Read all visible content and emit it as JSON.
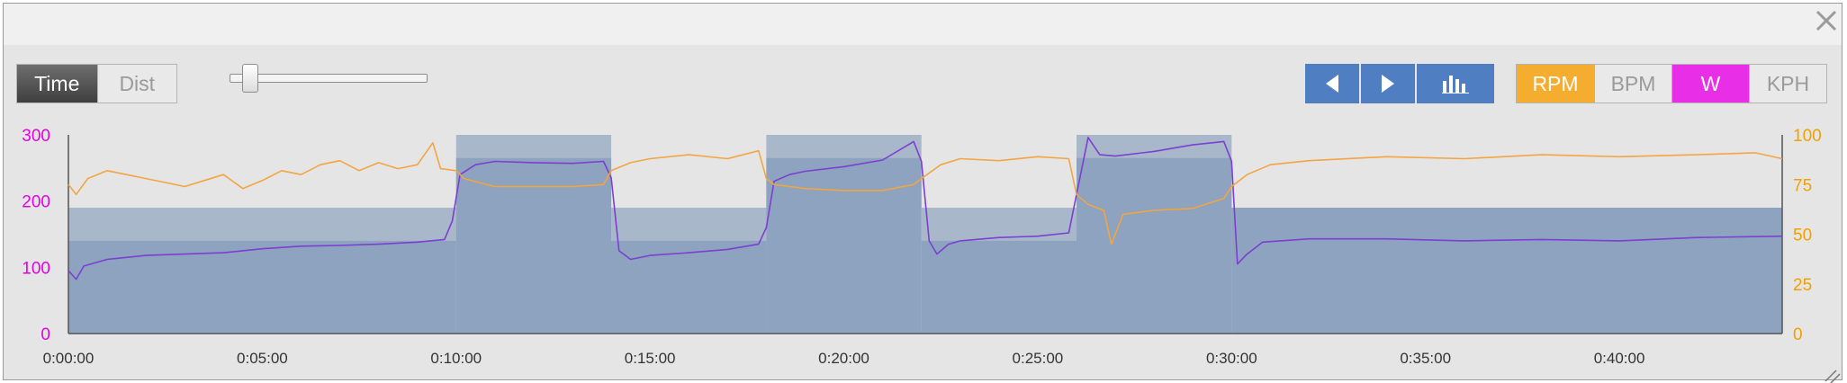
{
  "toolbar": {
    "mode_buttons": [
      {
        "label": "Time",
        "active": true
      },
      {
        "label": "Dist",
        "active": false
      }
    ],
    "zoom_slider_value": 0.1,
    "nav_icons": [
      "previous-icon",
      "next-icon",
      "bar-chart-icon"
    ],
    "metric_buttons": [
      {
        "label": "RPM",
        "active": true,
        "color": "#f4ad2e"
      },
      {
        "label": "BPM",
        "active": false
      },
      {
        "label": "W",
        "active": true,
        "color": "#e92ee7"
      },
      {
        "label": "KPH",
        "active": false
      }
    ]
  },
  "colors": {
    "power_axis": "#e600e6",
    "cadence_axis": "#f2a000",
    "cadence_line": "#f2a541",
    "power_line": "#7b3fd2",
    "target_area": "#8ea3bf",
    "target_band": "#a9b7cb",
    "background": "#e6e5e6"
  },
  "chart_data": {
    "type": "line",
    "x_unit": "minutes",
    "xlim": [
      0,
      44.2
    ],
    "x_ticks": [
      "0:00:00",
      "0:05:00",
      "0:10:00",
      "0:15:00",
      "0:20:00",
      "0:25:00",
      "0:30:00",
      "0:35:00",
      "0:40:00"
    ],
    "y_left": {
      "label": "W",
      "ylim": [
        0,
        300
      ],
      "ticks": [
        "300",
        "200",
        "100",
        "0"
      ]
    },
    "y_right": {
      "label": "RPM",
      "ylim": [
        0,
        100
      ],
      "ticks": [
        "100",
        "75",
        "50",
        "25",
        "0"
      ]
    },
    "target_blocks": [
      {
        "start": 0,
        "end": 10,
        "low": 140,
        "high": 190
      },
      {
        "start": 10,
        "end": 14,
        "low": 265,
        "high": 300
      },
      {
        "start": 14,
        "end": 18,
        "low": 140,
        "high": 190
      },
      {
        "start": 18,
        "end": 22,
        "low": 265,
        "high": 300
      },
      {
        "start": 22,
        "end": 26,
        "low": 140,
        "high": 190
      },
      {
        "start": 26,
        "end": 30,
        "low": 265,
        "high": 300
      },
      {
        "start": 30,
        "end": 44.2,
        "low": 190,
        "high": 190
      }
    ],
    "series": [
      {
        "name": "W",
        "axis": "left",
        "values": [
          [
            0,
            95
          ],
          [
            0.2,
            82
          ],
          [
            0.4,
            102
          ],
          [
            1,
            112
          ],
          [
            2,
            118
          ],
          [
            3,
            120
          ],
          [
            4,
            122
          ],
          [
            5,
            128
          ],
          [
            6,
            132
          ],
          [
            7,
            133
          ],
          [
            8,
            135
          ],
          [
            9,
            138
          ],
          [
            9.7,
            142
          ],
          [
            9.9,
            170
          ],
          [
            10.1,
            240
          ],
          [
            10.5,
            255
          ],
          [
            11,
            260
          ],
          [
            12,
            258
          ],
          [
            13,
            257
          ],
          [
            13.8,
            260
          ],
          [
            14,
            235
          ],
          [
            14.2,
            125
          ],
          [
            14.5,
            112
          ],
          [
            15,
            118
          ],
          [
            16,
            122
          ],
          [
            17,
            127
          ],
          [
            17.8,
            135
          ],
          [
            18,
            160
          ],
          [
            18.2,
            230
          ],
          [
            18.6,
            240
          ],
          [
            19,
            245
          ],
          [
            20,
            252
          ],
          [
            21,
            262
          ],
          [
            21.8,
            290
          ],
          [
            22,
            260
          ],
          [
            22.2,
            140
          ],
          [
            22.4,
            120
          ],
          [
            22.7,
            135
          ],
          [
            23,
            140
          ],
          [
            24,
            145
          ],
          [
            25,
            147
          ],
          [
            25.8,
            152
          ],
          [
            26,
            210
          ],
          [
            26.3,
            296
          ],
          [
            26.6,
            270
          ],
          [
            27,
            268
          ],
          [
            28,
            275
          ],
          [
            29,
            285
          ],
          [
            29.8,
            290
          ],
          [
            30,
            260
          ],
          [
            30.15,
            105
          ],
          [
            30.4,
            120
          ],
          [
            30.8,
            138
          ],
          [
            32,
            143
          ],
          [
            34,
            143
          ],
          [
            36,
            140
          ],
          [
            38,
            142
          ],
          [
            40,
            140
          ],
          [
            42,
            145
          ],
          [
            44.2,
            147
          ]
        ]
      },
      {
        "name": "RPM",
        "axis": "right",
        "values": [
          [
            0,
            75
          ],
          [
            0.2,
            70
          ],
          [
            0.5,
            78
          ],
          [
            1,
            82
          ],
          [
            1.5,
            80
          ],
          [
            2,
            78
          ],
          [
            2.5,
            76
          ],
          [
            3,
            74
          ],
          [
            3.5,
            77
          ],
          [
            4,
            80
          ],
          [
            4.5,
            73
          ],
          [
            5,
            77
          ],
          [
            5.5,
            82
          ],
          [
            6,
            80
          ],
          [
            6.5,
            85
          ],
          [
            7,
            87
          ],
          [
            7.5,
            82
          ],
          [
            8,
            86
          ],
          [
            8.5,
            83
          ],
          [
            9,
            85
          ],
          [
            9.4,
            96
          ],
          [
            9.6,
            83
          ],
          [
            10,
            82
          ],
          [
            10.2,
            78
          ],
          [
            11,
            74
          ],
          [
            12,
            74
          ],
          [
            13,
            74
          ],
          [
            13.8,
            75
          ],
          [
            14,
            82
          ],
          [
            14.5,
            86
          ],
          [
            15,
            88
          ],
          [
            16,
            90
          ],
          [
            17,
            88
          ],
          [
            17.8,
            92
          ],
          [
            18,
            78
          ],
          [
            18.2,
            75
          ],
          [
            19,
            73
          ],
          [
            20,
            72
          ],
          [
            21,
            72
          ],
          [
            21.8,
            75
          ],
          [
            22,
            78
          ],
          [
            22.5,
            85
          ],
          [
            23,
            88
          ],
          [
            24,
            87
          ],
          [
            25,
            89
          ],
          [
            25.8,
            88
          ],
          [
            26,
            70
          ],
          [
            26.3,
            65
          ],
          [
            26.7,
            62
          ],
          [
            26.9,
            45
          ],
          [
            27.2,
            60
          ],
          [
            28,
            62
          ],
          [
            29,
            63
          ],
          [
            29.8,
            68
          ],
          [
            30,
            74
          ],
          [
            30.4,
            80
          ],
          [
            31,
            85
          ],
          [
            32,
            87
          ],
          [
            34,
            89
          ],
          [
            36,
            88
          ],
          [
            38,
            90
          ],
          [
            40,
            89
          ],
          [
            42,
            90
          ],
          [
            43.5,
            91
          ],
          [
            44.2,
            88
          ]
        ]
      }
    ]
  }
}
